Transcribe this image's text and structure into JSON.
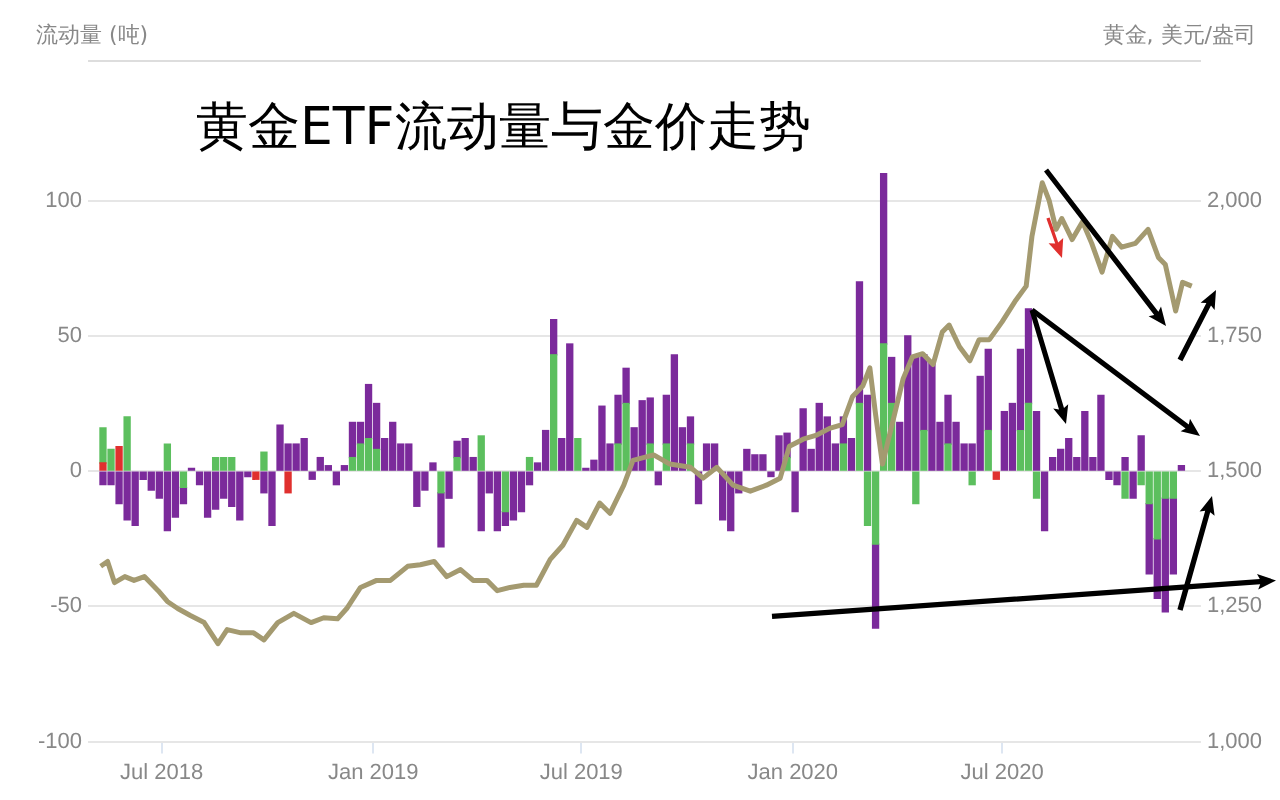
{
  "chart_data": {
    "type": "bar",
    "title": "黄金ETF流动量与金价走势",
    "ylabel": "流动量 (吨)",
    "y2label": "黄金, 美元/盎司",
    "stacked": true,
    "grid": "y",
    "marker": "none",
    "line_style": "solid",
    "xlim": [
      "2018-04-28",
      "2020-12-21"
    ],
    "xticks": [
      {
        "value": "2018-07-01",
        "label": "Jul 2018"
      },
      {
        "value": "2019-01-01",
        "label": "Jan 2019"
      },
      {
        "value": "2019-07-01",
        "label": "Jul 2019"
      },
      {
        "value": "2020-01-01",
        "label": "Jan 2020"
      },
      {
        "value": "2020-07-01",
        "label": "Jul 2020"
      }
    ],
    "ylim": [
      -100,
      152
    ],
    "yticks": [
      -100,
      -50,
      0,
      50,
      100
    ],
    "y2lim": [
      1000,
      2260
    ],
    "y2ticks": [
      {
        "value": 1000,
        "label": "1,000"
      },
      {
        "value": 1250,
        "label": "1,250"
      },
      {
        "value": 1500,
        "label": "1,500"
      },
      {
        "value": 1750,
        "label": "1,750"
      },
      {
        "value": 2000,
        "label": "2,000"
      }
    ],
    "x": [
      "2018-05-11",
      "2018-05-18",
      "2018-05-25",
      "2018-06-01",
      "2018-06-08",
      "2018-06-15",
      "2018-06-22",
      "2018-06-29",
      "2018-07-06",
      "2018-07-13",
      "2018-07-20",
      "2018-07-27",
      "2018-08-03",
      "2018-08-10",
      "2018-08-17",
      "2018-08-24",
      "2018-08-31",
      "2018-09-07",
      "2018-09-14",
      "2018-09-21",
      "2018-09-28",
      "2018-10-05",
      "2018-10-12",
      "2018-10-19",
      "2018-10-26",
      "2018-11-02",
      "2018-11-09",
      "2018-11-16",
      "2018-11-23",
      "2018-11-30",
      "2018-12-07",
      "2018-12-14",
      "2018-12-21",
      "2018-12-28",
      "2019-01-04",
      "2019-01-11",
      "2019-01-18",
      "2019-01-25",
      "2019-02-01",
      "2019-02-08",
      "2019-02-15",
      "2019-02-22",
      "2019-03-01",
      "2019-03-08",
      "2019-03-15",
      "2019-03-22",
      "2019-03-29",
      "2019-04-05",
      "2019-04-12",
      "2019-04-19",
      "2019-04-26",
      "2019-05-03",
      "2019-05-10",
      "2019-05-17",
      "2019-05-24",
      "2019-05-31",
      "2019-06-07",
      "2019-06-14",
      "2019-06-21",
      "2019-06-28",
      "2019-07-05",
      "2019-07-12",
      "2019-07-19",
      "2019-07-26",
      "2019-08-02",
      "2019-08-09",
      "2019-08-16",
      "2019-08-23",
      "2019-08-30",
      "2019-09-06",
      "2019-09-13",
      "2019-09-20",
      "2019-09-27",
      "2019-10-04",
      "2019-10-11",
      "2019-10-18",
      "2019-10-25",
      "2019-11-01",
      "2019-11-08",
      "2019-11-15",
      "2019-11-22",
      "2019-11-29",
      "2019-12-06",
      "2019-12-13",
      "2019-12-20",
      "2019-12-27",
      "2020-01-03",
      "2020-01-10",
      "2020-01-17",
      "2020-01-24",
      "2020-01-31",
      "2020-02-07",
      "2020-02-14",
      "2020-02-21",
      "2020-02-28",
      "2020-03-06",
      "2020-03-13",
      "2020-03-20",
      "2020-03-27",
      "2020-04-03",
      "2020-04-10",
      "2020-04-17",
      "2020-04-24",
      "2020-05-01",
      "2020-05-08",
      "2020-05-15",
      "2020-05-22",
      "2020-05-29",
      "2020-06-05",
      "2020-06-12",
      "2020-06-19",
      "2020-06-26",
      "2020-07-03",
      "2020-07-10",
      "2020-07-17",
      "2020-07-24",
      "2020-07-31",
      "2020-08-07",
      "2020-08-14",
      "2020-08-21",
      "2020-08-28",
      "2020-09-04",
      "2020-09-11",
      "2020-09-18",
      "2020-09-25",
      "2020-10-02",
      "2020-10-09",
      "2020-10-16",
      "2020-10-23",
      "2020-10-30",
      "2020-11-06",
      "2020-11-13",
      "2020-11-20",
      "2020-11-27",
      "2020-12-04"
    ],
    "series": [
      {
        "color": "#e0302e",
        "values": [
          3,
          null,
          9,
          null,
          null,
          null,
          null,
          null,
          null,
          null,
          null,
          null,
          null,
          null,
          null,
          null,
          null,
          null,
          null,
          -3,
          null,
          null,
          null,
          -8,
          null,
          null,
          null,
          null,
          null,
          null,
          null,
          null,
          null,
          null,
          null,
          null,
          null,
          null,
          null,
          null,
          null,
          null,
          null,
          null,
          null,
          null,
          null,
          null,
          null,
          null,
          null,
          null,
          null,
          null,
          null,
          null,
          null,
          null,
          null,
          null,
          null,
          null,
          null,
          null,
          null,
          null,
          null,
          null,
          null,
          null,
          null,
          null,
          null,
          null,
          null,
          null,
          null,
          null,
          null,
          null,
          null,
          null,
          null,
          null,
          null,
          null,
          null,
          null,
          null,
          null,
          null,
          null,
          null,
          null,
          null,
          null,
          null,
          null,
          null,
          null,
          null,
          null,
          null,
          null,
          null,
          null,
          null,
          null,
          null,
          null,
          null,
          -3,
          null,
          null,
          null,
          null,
          null,
          null,
          null,
          null,
          null,
          null,
          null,
          null,
          null,
          null,
          null,
          null,
          null,
          null,
          null,
          null,
          null,
          null,
          null
        ]
      },
      {
        "color": "#5cbf5e",
        "values": [
          13,
          8,
          null,
          20,
          null,
          null,
          null,
          null,
          10,
          null,
          -6,
          null,
          null,
          null,
          5,
          5,
          5,
          null,
          null,
          null,
          7,
          null,
          null,
          null,
          null,
          null,
          null,
          null,
          null,
          null,
          null,
          5,
          10,
          12,
          8,
          null,
          null,
          null,
          null,
          null,
          null,
          null,
          -8,
          null,
          5,
          null,
          null,
          13,
          null,
          null,
          -15,
          null,
          null,
          5,
          null,
          null,
          43,
          null,
          null,
          12,
          null,
          null,
          null,
          null,
          10,
          25,
          null,
          null,
          10,
          null,
          10,
          null,
          null,
          10,
          null,
          null,
          null,
          null,
          null,
          null,
          null,
          null,
          null,
          null,
          null,
          5,
          null,
          null,
          null,
          null,
          null,
          null,
          10,
          null,
          25,
          -20,
          -27,
          47,
          25,
          null,
          null,
          -12,
          15,
          null,
          null,
          10,
          null,
          null,
          -5,
          null,
          15,
          null,
          null,
          null,
          15,
          25,
          -10,
          null,
          null,
          null,
          null,
          null,
          null,
          null,
          null,
          null,
          null,
          -10,
          null,
          -5,
          -12,
          -25,
          -10,
          -10,
          null
        ]
      },
      {
        "color": "#7b2a9b",
        "values": [
          -5,
          -5,
          -12,
          -18,
          -20,
          -3,
          -7,
          -10,
          -22,
          -17,
          -6,
          1,
          -5,
          -17,
          -14,
          -10,
          -13,
          -18,
          -2,
          null,
          -8,
          -20,
          17,
          10,
          10,
          12,
          -3,
          5,
          2,
          -5,
          2,
          13,
          8,
          20,
          17,
          12,
          18,
          10,
          10,
          -13,
          -7,
          3,
          -20,
          -10,
          6,
          12,
          5,
          -22,
          -8,
          -22,
          -5,
          -18,
          -15,
          -5,
          3,
          15,
          13,
          12,
          47,
          null,
          1,
          4,
          24,
          10,
          18,
          13,
          16,
          26,
          17,
          -5,
          18,
          43,
          16,
          10,
          -12,
          10,
          10,
          -18,
          -22,
          -8,
          8,
          6,
          6,
          -2,
          13,
          9,
          -15,
          23,
          8,
          25,
          20,
          10,
          10,
          12,
          45,
          28,
          -31,
          63,
          17,
          18,
          50,
          42,
          28,
          40,
          18,
          18,
          18,
          10,
          10,
          35,
          30,
          null,
          22,
          25,
          30,
          35,
          22,
          -22,
          5,
          8,
          12,
          5,
          22,
          5,
          28,
          -3,
          -5,
          5,
          -10,
          13,
          -26,
          -22,
          -42,
          -28,
          2
        ]
      },
      {
        "type": "line",
        "axis": "y2",
        "color": "#a49a70",
        "x": [
          "2018-05-09",
          "2018-05-15",
          "2018-05-21",
          "2018-05-30",
          "2018-06-07",
          "2018-06-16",
          "2018-06-28",
          "2018-07-06",
          "2018-07-15",
          "2018-07-26",
          "2018-08-07",
          "2018-08-19",
          "2018-08-27",
          "2018-09-08",
          "2018-09-19",
          "2018-09-28",
          "2018-10-10",
          "2018-10-24",
          "2018-11-08",
          "2018-11-19",
          "2018-12-01",
          "2018-12-09",
          "2018-12-21",
          "2019-01-04",
          "2019-01-16",
          "2019-01-31",
          "2019-02-11",
          "2019-02-23",
          "2019-03-06",
          "2019-03-18",
          "2019-03-29",
          "2019-04-10",
          "2019-04-19",
          "2019-04-30",
          "2019-05-12",
          "2019-05-23",
          "2019-06-04",
          "2019-06-15",
          "2019-06-27",
          "2019-07-06",
          "2019-07-17",
          "2019-07-26",
          "2019-08-07",
          "2019-08-15",
          "2019-09-02",
          "2019-09-16",
          "2019-10-04",
          "2019-10-15",
          "2019-10-27",
          "2019-11-10",
          "2019-11-25",
          "2019-12-09",
          "2019-12-21",
          "2019-12-29",
          "2020-01-10",
          "2020-01-21",
          "2020-02-02",
          "2020-02-13",
          "2020-02-22",
          "2020-03-02",
          "2020-03-08",
          "2020-03-13",
          "2020-03-19",
          "2020-03-28",
          "2020-04-06",
          "2020-04-14",
          "2020-04-23",
          "2020-05-02",
          "2020-05-10",
          "2020-05-16",
          "2020-05-25",
          "2020-06-03",
          "2020-06-11",
          "2020-06-20",
          "2020-07-01",
          "2020-07-13",
          "2020-07-22",
          "2020-07-27",
          "2020-08-05",
          "2020-08-11",
          "2020-08-17",
          "2020-08-22",
          "2020-08-31",
          "2020-09-09",
          "2020-09-17",
          "2020-09-26",
          "2020-10-05",
          "2020-10-13",
          "2020-10-25",
          "2020-11-05",
          "2020-11-14",
          "2020-11-20",
          "2020-11-29",
          "2020-12-05",
          "2020-12-13"
        ],
        "values": [
          1324,
          1333,
          1294,
          1305,
          1298,
          1305,
          1279,
          1259,
          1246,
          1233,
          1220,
          1181,
          1207,
          1201,
          1201,
          1188,
          1220,
          1237,
          1220,
          1229,
          1227,
          1246,
          1285,
          1298,
          1298,
          1324,
          1327,
          1333,
          1305,
          1318,
          1298,
          1298,
          1279,
          1285,
          1289,
          1289,
          1337,
          1363,
          1409,
          1396,
          1441,
          1422,
          1474,
          1520,
          1530,
          1513,
          1507,
          1487,
          1507,
          1474,
          1463,
          1474,
          1487,
          1546,
          1559,
          1566,
          1579,
          1586,
          1638,
          1658,
          1691,
          1605,
          1513,
          1592,
          1671,
          1711,
          1717,
          1697,
          1757,
          1770,
          1730,
          1704,
          1743,
          1743,
          1776,
          1816,
          1842,
          1934,
          2033,
          2000,
          1947,
          1967,
          1928,
          1961,
          1921,
          1868,
          1934,
          1914,
          1921,
          1947,
          1895,
          1882,
          1796,
          1849,
          1842
        ]
      }
    ]
  }
}
